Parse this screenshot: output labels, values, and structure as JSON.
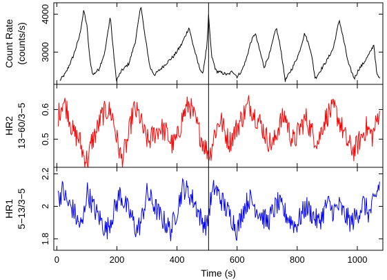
{
  "chart_data": {
    "type": "line",
    "x": {
      "label": "Time (s)",
      "range": [
        -10,
        1085
      ],
      "ticks": [
        0,
        200,
        400,
        600,
        800,
        1000
      ],
      "tick_labels": [
        "0",
        "200",
        "400",
        "600",
        "800",
        "1000"
      ]
    },
    "marker_line": {
      "x": 505
    },
    "panels": [
      {
        "id": "count-rate",
        "ylabel_lines": [
          "Count Rate",
          "(counts/s)"
        ],
        "ylim": [
          2150,
          4300
        ],
        "ticks": [
          3000,
          4000
        ],
        "tick_labels": [
          "3000",
          "4000"
        ],
        "color": "#000000",
        "noise": 90,
        "series": [
          {
            "knots": [
              [
                10,
                2250
              ],
              [
                30,
                2450
              ],
              [
                55,
                2900
              ],
              [
                75,
                3400
              ],
              [
                90,
                4100
              ],
              [
                100,
                3700
              ],
              [
                110,
                2800
              ],
              [
                120,
                2400
              ],
              [
                140,
                2550
              ],
              [
                160,
                3000
              ],
              [
                178,
                3950
              ],
              [
                185,
                3300
              ],
              [
                198,
                2250
              ],
              [
                215,
                2500
              ],
              [
                240,
                2700
              ],
              [
                262,
                3300
              ],
              [
                280,
                4250
              ],
              [
                290,
                3600
              ],
              [
                310,
                2600
              ],
              [
                325,
                2400
              ],
              [
                345,
                2550
              ],
              [
                370,
                2750
              ],
              [
                390,
                2900
              ],
              [
                415,
                3200
              ],
              [
                440,
                3650
              ],
              [
                450,
                3300
              ],
              [
                470,
                2700
              ],
              [
                485,
                2400
              ],
              [
                500,
                3200
              ],
              [
                505,
                3950
              ],
              [
                515,
                2900
              ],
              [
                530,
                2500
              ],
              [
                550,
                2450
              ],
              [
                570,
                2400
              ],
              [
                585,
                2500
              ],
              [
                600,
                2350
              ],
              [
                615,
                2500
              ],
              [
                630,
                2800
              ],
              [
                645,
                3250
              ],
              [
                660,
                3500
              ],
              [
                670,
                3200
              ],
              [
                690,
                2600
              ],
              [
                710,
                3000
              ],
              [
                730,
                3650
              ],
              [
                745,
                3100
              ],
              [
                760,
                2250
              ],
              [
                785,
                2600
              ],
              [
                805,
                2950
              ],
              [
                825,
                3500
              ],
              [
                845,
                3050
              ],
              [
                860,
                2300
              ],
              [
                880,
                2550
              ],
              [
                900,
                2800
              ],
              [
                920,
                3100
              ],
              [
                940,
                3850
              ],
              [
                955,
                3300
              ],
              [
                970,
                2700
              ],
              [
                990,
                2300
              ],
              [
                1005,
                2550
              ],
              [
                1020,
                2700
              ],
              [
                1040,
                2950
              ],
              [
                1055,
                3200
              ],
              [
                1065,
                2400
              ],
              [
                1075,
                2300
              ]
            ]
          }
        ]
      },
      {
        "id": "hr2",
        "ylabel_lines": [
          "HR2",
          "13−60/3−5"
        ],
        "ylim": [
          0.405,
          0.685
        ],
        "ticks": [
          0.5,
          0.6
        ],
        "tick_labels": [
          "0.5",
          "0.6"
        ],
        "color": "#ff0000",
        "noise": 0.04,
        "series": [
          {
            "knots": [
              [
                5,
                0.58
              ],
              [
                20,
                0.63
              ],
              [
                35,
                0.6
              ],
              [
                55,
                0.52
              ],
              [
                75,
                0.5
              ],
              [
                90,
                0.44
              ],
              [
                105,
                0.43
              ],
              [
                115,
                0.49
              ],
              [
                130,
                0.52
              ],
              [
                150,
                0.58
              ],
              [
                170,
                0.6
              ],
              [
                185,
                0.58
              ],
              [
                200,
                0.5
              ],
              [
                215,
                0.43
              ],
              [
                235,
                0.49
              ],
              [
                255,
                0.6
              ],
              [
                275,
                0.58
              ],
              [
                290,
                0.52
              ],
              [
                305,
                0.49
              ],
              [
                325,
                0.52
              ],
              [
                345,
                0.54
              ],
              [
                365,
                0.52
              ],
              [
                385,
                0.48
              ],
              [
                400,
                0.5
              ],
              [
                420,
                0.58
              ],
              [
                440,
                0.62
              ],
              [
                455,
                0.58
              ],
              [
                475,
                0.52
              ],
              [
                495,
                0.47
              ],
              [
                510,
                0.45
              ],
              [
                525,
                0.52
              ],
              [
                545,
                0.57
              ],
              [
                560,
                0.52
              ],
              [
                575,
                0.49
              ],
              [
                595,
                0.53
              ],
              [
                615,
                0.57
              ],
              [
                640,
                0.62
              ],
              [
                660,
                0.58
              ],
              [
                680,
                0.55
              ],
              [
                700,
                0.5
              ],
              [
                720,
                0.48
              ],
              [
                740,
                0.55
              ],
              [
                760,
                0.58
              ],
              [
                775,
                0.52
              ],
              [
                790,
                0.49
              ],
              [
                810,
                0.54
              ],
              [
                830,
                0.57
              ],
              [
                850,
                0.52
              ],
              [
                870,
                0.49
              ],
              [
                885,
                0.55
              ],
              [
                905,
                0.59
              ],
              [
                925,
                0.6
              ],
              [
                945,
                0.55
              ],
              [
                965,
                0.49
              ],
              [
                990,
                0.46
              ],
              [
                1010,
                0.5
              ],
              [
                1030,
                0.54
              ],
              [
                1050,
                0.51
              ],
              [
                1065,
                0.56
              ],
              [
                1075,
                0.61
              ]
            ]
          }
        ]
      },
      {
        "id": "hr1",
        "ylabel_lines": [
          "HR1",
          "5−13/3−5"
        ],
        "ylim": [
          1.73,
          2.24
        ],
        "ticks": [
          1.8,
          2.0,
          2.2
        ],
        "tick_labels": [
          "1.8",
          "2",
          "2.2"
        ],
        "color": "#0000ff",
        "noise": 0.07,
        "series": [
          {
            "knots": [
              [
                5,
                2.05
              ],
              [
                20,
                2.1
              ],
              [
                35,
                2.02
              ],
              [
                55,
                1.98
              ],
              [
                70,
                1.9
              ],
              [
                85,
                1.88
              ],
              [
                100,
                2.1
              ],
              [
                110,
                2.05
              ],
              [
                125,
                1.98
              ],
              [
                145,
                1.92
              ],
              [
                165,
                1.85
              ],
              [
                180,
                1.92
              ],
              [
                200,
                2.02
              ],
              [
                210,
                2.08
              ],
              [
                230,
                2.0
              ],
              [
                250,
                1.93
              ],
              [
                265,
                1.85
              ],
              [
                280,
                1.9
              ],
              [
                300,
                2.08
              ],
              [
                320,
                2.02
              ],
              [
                340,
                1.95
              ],
              [
                360,
                1.9
              ],
              [
                380,
                1.85
              ],
              [
                400,
                1.98
              ],
              [
                420,
                2.12
              ],
              [
                440,
                2.08
              ],
              [
                460,
                2.02
              ],
              [
                480,
                1.92
              ],
              [
                500,
                1.88
              ],
              [
                510,
                2.02
              ],
              [
                525,
                2.12
              ],
              [
                545,
                2.05
              ],
              [
                565,
                1.98
              ],
              [
                585,
                1.92
              ],
              [
                600,
                1.85
              ],
              [
                620,
                1.98
              ],
              [
                640,
                2.05
              ],
              [
                660,
                2.0
              ],
              [
                680,
                1.95
              ],
              [
                700,
                1.9
              ],
              [
                720,
                1.97
              ],
              [
                735,
                2.02
              ],
              [
                755,
                1.97
              ],
              [
                775,
                1.92
              ],
              [
                795,
                1.88
              ],
              [
                815,
                1.95
              ],
              [
                830,
                2.0
              ],
              [
                850,
                1.95
              ],
              [
                870,
                1.9
              ],
              [
                885,
                1.95
              ],
              [
                900,
                2.02
              ],
              [
                920,
                1.97
              ],
              [
                940,
                2.0
              ],
              [
                960,
                1.94
              ],
              [
                980,
                1.9
              ],
              [
                1000,
                1.95
              ],
              [
                1020,
                2.02
              ],
              [
                1040,
                1.95
              ],
              [
                1060,
                2.05
              ],
              [
                1075,
                2.15
              ]
            ]
          }
        ]
      }
    ]
  }
}
